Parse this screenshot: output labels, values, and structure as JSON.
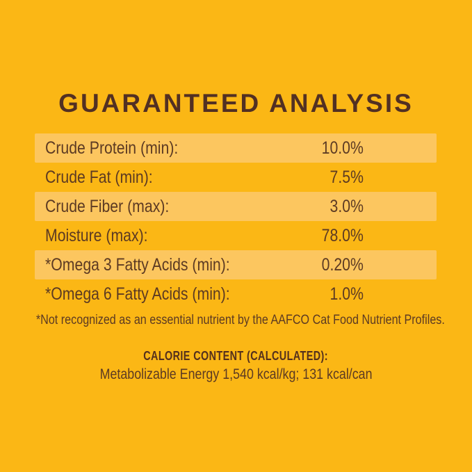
{
  "page": {
    "title": "GUARANTEED ANALYSIS",
    "colors": {
      "background": "#FBB715",
      "row_stripe": "#FCC65F",
      "text_brown": "#5C3A23",
      "title_brown": "#523023"
    }
  },
  "analysis_table": {
    "rows": [
      {
        "label": "Crude Protein (min):",
        "value": "10.0%"
      },
      {
        "label": "Crude Fat (min):",
        "value": "7.5%"
      },
      {
        "label": "Crude Fiber (max):",
        "value": "3.0%"
      },
      {
        "label": "Moisture (max):",
        "value": "78.0%"
      },
      {
        "label": "*Omega 3 Fatty Acids (min):",
        "value": "0.20%"
      },
      {
        "label": "*Omega 6 Fatty Acids (min):",
        "value": "1.0%"
      }
    ]
  },
  "footnote": "*Not recognized as an essential nutrient by the AAFCO Cat Food Nutrient Profiles.",
  "calorie_content": {
    "heading": "CALORIE CONTENT (CALCULATED):",
    "body": "Metabolizable Energy 1,540 kcal/kg; 131 kcal/can"
  }
}
